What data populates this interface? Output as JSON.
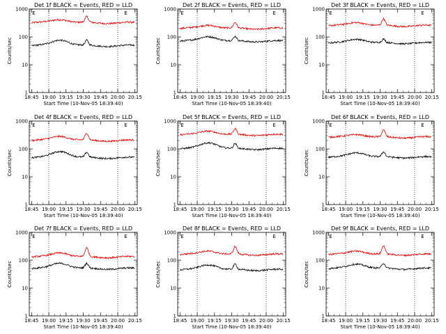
{
  "chart_data": {
    "type": "line",
    "panel_layout": "3x3 grid",
    "x_time_ticks": [
      "18:45",
      "19:00",
      "19:15",
      "19:30",
      "19:45",
      "20:00",
      "20:15"
    ],
    "x_range_minutes_after_1845": [
      -2,
      92
    ],
    "ylim": [
      1,
      1000
    ],
    "y_scale": "log",
    "y_ticks": [
      "1",
      "10",
      "100",
      "1000"
    ],
    "ylabel": "Counts/sec",
    "xlabel": "Start Time (10-Nov-05 18:39:40)",
    "marker_E_positions_min": [
      0,
      80
    ],
    "vertical_dotted_lines_min": [
      15,
      75
    ],
    "series_colors": {
      "events": "#000000",
      "lld": "#e00000"
    },
    "panels": [
      {
        "title": "Det 1f BLACK = Events, RED = LLD",
        "events_base": 48,
        "lld_base": 320,
        "events_bump": 30,
        "lld_bump": 110,
        "spike_events": 25,
        "spike_lld": 200
      },
      {
        "title": "Det 2f BLACK = Events, RED = LLD",
        "events_base": 70,
        "lld_base": 200,
        "events_bump": 35,
        "lld_bump": 70,
        "spike_events": 30,
        "spike_lld": 120
      },
      {
        "title": "Det 3f BLACK = Events, RED = LLD",
        "events_base": 60,
        "lld_base": 250,
        "events_bump": 25,
        "lld_bump": 90,
        "spike_events": 20,
        "spike_lld": 180
      },
      {
        "title": "Det 4f BLACK = Events, RED = LLD",
        "events_base": 48,
        "lld_base": 200,
        "events_bump": 35,
        "lld_bump": 90,
        "spike_events": 25,
        "spike_lld": 160
      },
      {
        "title": "Det 5f BLACK = Events, RED = LLD",
        "events_base": 100,
        "lld_base": 320,
        "events_bump": 70,
        "lld_bump": 130,
        "spike_events": 50,
        "spike_lld": 200
      },
      {
        "title": "Det 6f BLACK = Events, RED = LLD",
        "events_base": 50,
        "lld_base": 260,
        "events_bump": 25,
        "lld_bump": 80,
        "spike_events": 25,
        "spike_lld": 200
      },
      {
        "title": "Det 7f BLACK = Events, RED = LLD",
        "events_base": 50,
        "lld_base": 130,
        "events_bump": 30,
        "lld_bump": 60,
        "spike_events": 25,
        "spike_lld": 140
      },
      {
        "title": "Det 8f BLACK = Events, RED = LLD",
        "events_base": 45,
        "lld_base": 160,
        "events_bump": 25,
        "lld_bump": 60,
        "spike_events": 25,
        "spike_lld": 140
      },
      {
        "title": "Det 9f BLACK = Events, RED = LLD",
        "events_base": 50,
        "lld_base": 160,
        "events_bump": 25,
        "lld_bump": 60,
        "spike_events": 25,
        "spike_lld": 160
      }
    ]
  }
}
